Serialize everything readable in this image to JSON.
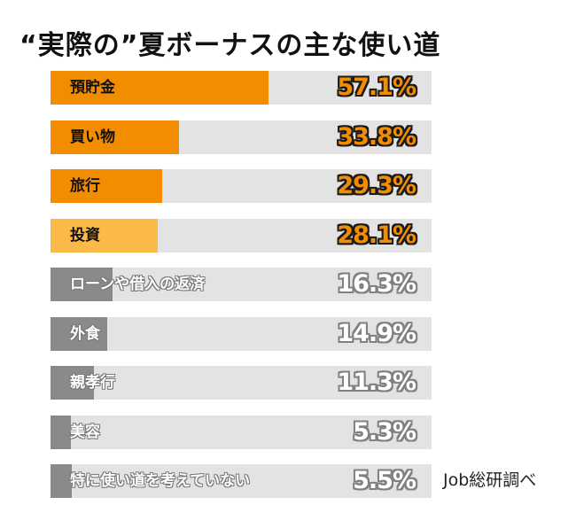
{
  "chart_data": {
    "type": "bar",
    "title": "“実際の”夏ボーナスの主な使い道",
    "categories": [
      "預貯金",
      "買い物",
      "旅行",
      "投資",
      "ローンや借入の返済",
      "外食",
      "親孝行",
      "美容",
      "特に使い道を考えていない"
    ],
    "values": [
      57.1,
      33.8,
      29.3,
      28.1,
      16.3,
      14.9,
      11.3,
      5.3,
      5.5
    ],
    "value_labels": [
      "57.1%",
      "33.8%",
      "29.3%",
      "28.1%",
      "16.3%",
      "14.9%",
      "11.3%",
      "5.3%",
      "5.5%"
    ],
    "colors": [
      "#f28c00",
      "#f28c00",
      "#f28c00",
      "#fbb94a",
      "#8a8a8a",
      "#8a8a8a",
      "#8a8a8a",
      "#8a8a8a",
      "#8a8a8a"
    ],
    "track_color": "#e3e3e3",
    "xlim": [
      0,
      100
    ],
    "unit": "%",
    "source": "Job総研調べ"
  }
}
